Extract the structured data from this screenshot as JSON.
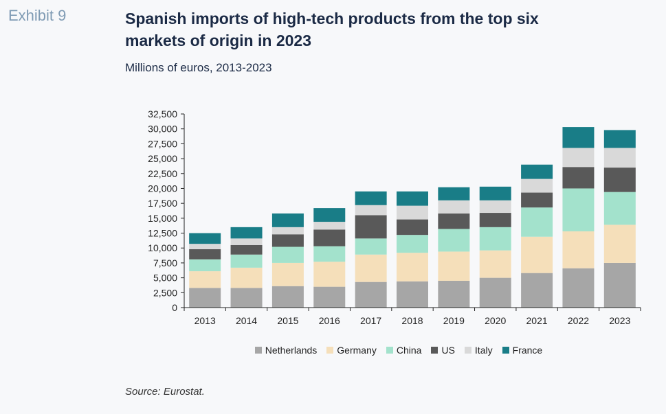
{
  "header": {
    "exhibit": "Exhibit 9",
    "title": "Spanish imports of high-tech products from the top six markets of origin in 2023",
    "subtitle": "Millions of euros, 2013-2023"
  },
  "footer": {
    "source": "Source: Eurostat."
  },
  "chart_data": {
    "type": "bar",
    "stacked": true,
    "categories": [
      "2013",
      "2014",
      "2015",
      "2016",
      "2017",
      "2018",
      "2019",
      "2020",
      "2021",
      "2022",
      "2023"
    ],
    "ylim": [
      0,
      32500
    ],
    "yticks": [
      "0",
      "2,500",
      "5,000",
      "7,500",
      "10,000",
      "12,500",
      "15,000",
      "17,500",
      "20,000",
      "22,500",
      "25,000",
      "27,500",
      "30,000",
      "32,500"
    ],
    "ytick_values": [
      0,
      2500,
      5000,
      7500,
      10000,
      12500,
      15000,
      17500,
      20000,
      22500,
      25000,
      27500,
      30000,
      32500
    ],
    "legend_position": "bottom",
    "grid": false,
    "series": [
      {
        "name": "Netherlands",
        "color": "#a6a6a6",
        "values": [
          3300,
          3300,
          3600,
          3500,
          4300,
          4400,
          4500,
          5000,
          5800,
          6600,
          7500
        ]
      },
      {
        "name": "Germany",
        "color": "#f5dfba",
        "values": [
          2800,
          3400,
          3900,
          4200,
          4600,
          4800,
          4900,
          4600,
          6100,
          6200,
          6400
        ]
      },
      {
        "name": "China",
        "color": "#a3e2cc",
        "values": [
          2000,
          2200,
          2700,
          2600,
          2700,
          3000,
          3800,
          3900,
          4900,
          7200,
          5500
        ]
      },
      {
        "name": "US",
        "color": "#595959",
        "values": [
          1700,
          1600,
          2100,
          2800,
          3900,
          2600,
          2600,
          2400,
          2500,
          3600,
          4100
        ]
      },
      {
        "name": "Italy",
        "color": "#d9d9d9",
        "values": [
          900,
          1100,
          1200,
          1300,
          1700,
          2300,
          2200,
          2100,
          2300,
          3200,
          3300
        ]
      },
      {
        "name": "France",
        "color": "#197d87",
        "values": [
          1800,
          1900,
          2300,
          2300,
          2300,
          2400,
          2200,
          2300,
          2400,
          3500,
          3000
        ]
      }
    ]
  }
}
